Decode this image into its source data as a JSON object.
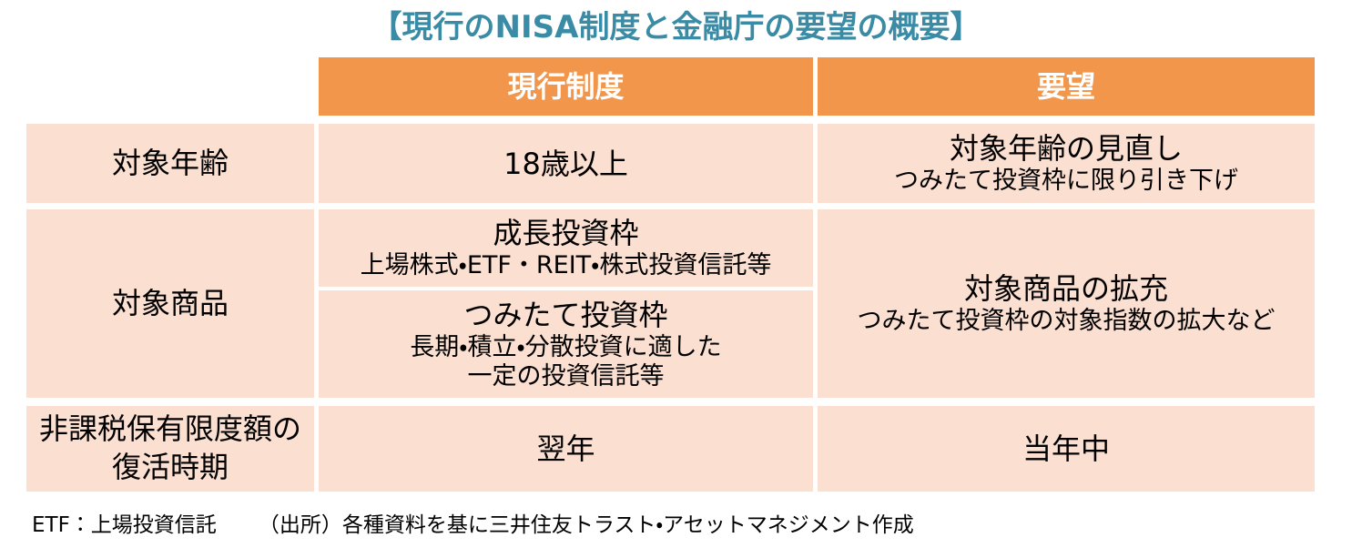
{
  "title": {
    "text": "【現行のNISA制度と金融庁の要望の概要】"
  },
  "colors": {
    "title_text": "#3A8CA6",
    "header_bg": "#F2964B",
    "header_text": "#FFFFFF",
    "cell_bg": "#FBDFD1",
    "body_text": "#000000"
  },
  "table": {
    "headers": {
      "current": "現行制度",
      "request": "要望"
    },
    "rows": {
      "age": {
        "label": "対象年齢",
        "current": "18歳以上",
        "request_main": "対象年齢の見直し",
        "request_sub": "つみたて投資枠に限り引き下げ"
      },
      "products": {
        "label": "対象商品",
        "current_growth_main": "成長投資枠",
        "current_growth_sub": "上場株式・ETF・REIT・株式投資信託等",
        "current_tsumitate_main": "つみたて投資枠",
        "current_tsumitate_sub1": "長期・積立・分散投資に適した",
        "current_tsumitate_sub2": "一定の投資信託等",
        "request_main": "対象商品の拡充",
        "request_sub": "つみたて投資枠の対象指数の拡大など"
      },
      "limit": {
        "label_line1": "非課税保有限度額の",
        "label_line2": "復活時期",
        "current": "翌年",
        "request": "当年中"
      }
    }
  },
  "footer": {
    "note": "ETF：上場投資信託",
    "source": "（出所）各種資料を基に三井住友トラスト・アセットマネジメント作成"
  }
}
